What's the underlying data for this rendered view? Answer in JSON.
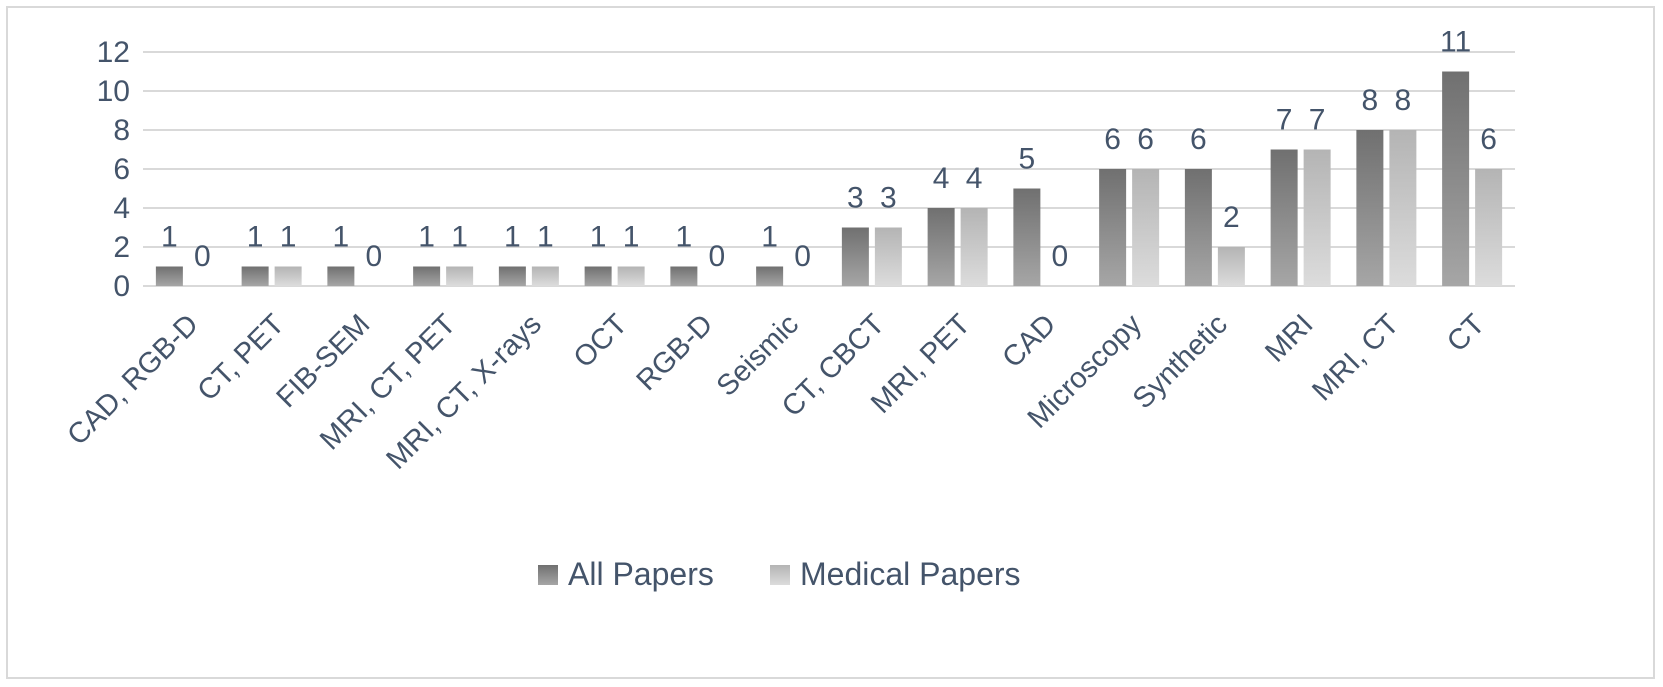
{
  "chart_data": {
    "type": "bar",
    "categories": [
      "CAD, RGB-D",
      "CT, PET",
      "FIB-SEM",
      "MRI, CT, PET",
      "MRI, CT, X-rays",
      "OCT",
      "RGB-D",
      "Seismic",
      "CT, CBCT",
      "MRI, PET",
      "CAD",
      "Microscopy",
      "Synthetic",
      "MRI",
      "MRI, CT",
      "CT"
    ],
    "series": [
      {
        "name": "All Papers",
        "values": [
          1,
          1,
          1,
          1,
          1,
          1,
          1,
          1,
          3,
          4,
          5,
          6,
          6,
          7,
          8,
          11
        ],
        "color": "#8c8c8c"
      },
      {
        "name": "Medical Papers",
        "values": [
          0,
          1,
          0,
          1,
          1,
          1,
          0,
          0,
          3,
          4,
          0,
          6,
          2,
          7,
          8,
          6
        ],
        "color": "#c6c6c6"
      }
    ],
    "ylim": [
      0,
      12
    ],
    "yticks": [
      0,
      2,
      4,
      6,
      8,
      10,
      12
    ],
    "grid": true,
    "data_labels": true,
    "legend_position": "bottom",
    "colors": {
      "gridline": "#d9d9d9",
      "text": "#44546a"
    }
  }
}
